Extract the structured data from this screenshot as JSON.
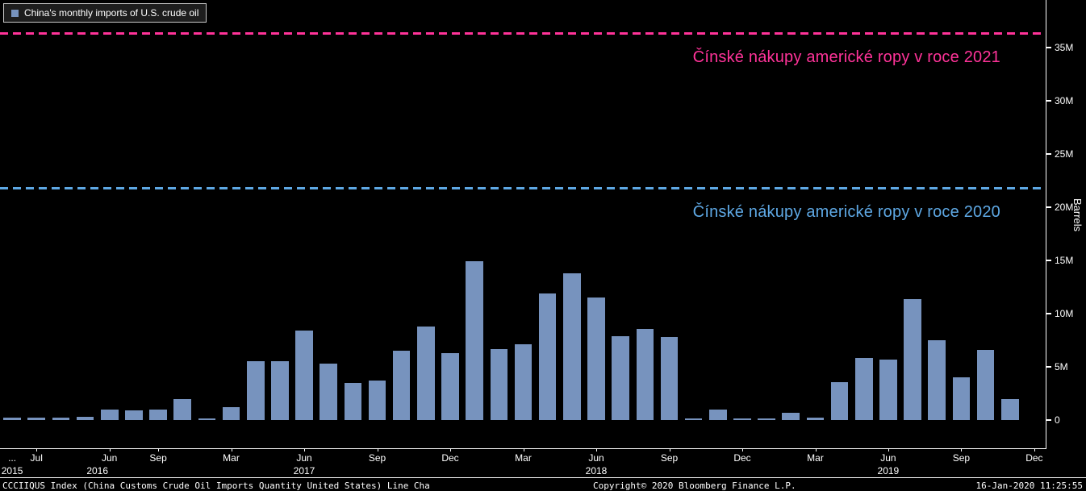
{
  "legend": {
    "label": "China's monthly imports of U.S. crude oil",
    "swatch_color": "#7793be"
  },
  "chart_data": {
    "type": "bar",
    "title": "China's monthly imports of U.S. crude oil",
    "xlabel": "",
    "ylabel": "Barrels",
    "unit": "millions of barrels",
    "ylim": [
      -2.6,
      39.4
    ],
    "grid": false,
    "legend_position": "top-left",
    "bar_color": "#7793be",
    "yticks": [
      0,
      5,
      10,
      15,
      20,
      25,
      30,
      35
    ],
    "ytick_labels": [
      "0",
      "5M",
      "10M",
      "15M",
      "20M",
      "25M",
      "30M",
      "35M"
    ],
    "values": [
      0.2,
      0.2,
      0.2,
      0.3,
      1.0,
      0.9,
      1.0,
      2.0,
      0.1,
      1.2,
      5.5,
      5.5,
      8.4,
      5.3,
      3.5,
      3.7,
      6.5,
      8.8,
      6.3,
      14.9,
      6.7,
      7.1,
      11.9,
      13.8,
      11.5,
      7.9,
      8.6,
      7.8,
      0.15,
      1.0,
      0.15,
      0.15,
      0.7,
      0.2,
      3.6,
      5.8,
      5.7,
      11.4,
      7.5,
      4.0,
      6.6,
      2.0
    ],
    "xticks": [
      {
        "index": 0,
        "label": "..."
      },
      {
        "index": 1,
        "label": "Jul"
      },
      {
        "index": 4,
        "label": "Jun"
      },
      {
        "index": 6,
        "label": "Sep"
      },
      {
        "index": 9,
        "label": "Mar"
      },
      {
        "index": 12,
        "label": "Jun"
      },
      {
        "index": 15,
        "label": "Sep"
      },
      {
        "index": 18,
        "label": "Dec"
      },
      {
        "index": 21,
        "label": "Mar"
      },
      {
        "index": 24,
        "label": "Jun"
      },
      {
        "index": 27,
        "label": "Sep"
      },
      {
        "index": 30,
        "label": "Dec"
      },
      {
        "index": 33,
        "label": "Mar"
      },
      {
        "index": 36,
        "label": "Jun"
      },
      {
        "index": 39,
        "label": "Sep"
      },
      {
        "index": 42,
        "label": "Dec"
      }
    ],
    "year_ticks": [
      {
        "index": 0,
        "label": "2015"
      },
      {
        "index": 3.5,
        "label": "2016"
      },
      {
        "index": 12,
        "label": "2017"
      },
      {
        "index": 24,
        "label": "2018"
      },
      {
        "index": 36,
        "label": "2019"
      }
    ],
    "reference_lines": [
      {
        "label": "Čínské nákupy americké ropy v roce 2021",
        "value": 36.4,
        "color": "#ff3399"
      },
      {
        "label": "Čínské nákupy americké ropy v roce 2020",
        "value": 21.8,
        "color": "#5ea8e4"
      }
    ]
  },
  "statusbar": {
    "left": "CCCIIQUS Index (China Customs Crude Oil Imports Quantity United States) Line Cha",
    "center": "Copyright© 2020 Bloomberg Finance L.P.",
    "right": "16-Jan-2020 11:25:55"
  }
}
